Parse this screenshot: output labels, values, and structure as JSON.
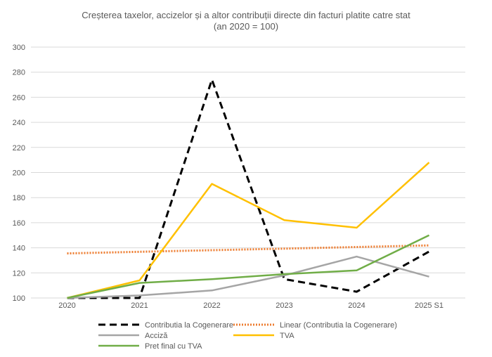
{
  "chart_data": {
    "type": "line",
    "title": "Creșterea taxelor, accizelor și a altor contribuții directe din facturi platite catre stat",
    "subtitle": "(an 2020 = 100)",
    "categories": [
      "2020",
      "2021",
      "2022",
      "2023",
      "2024",
      "2025 S1"
    ],
    "ylim": [
      100,
      300
    ],
    "yticks": [
      100,
      120,
      140,
      160,
      180,
      200,
      220,
      240,
      260,
      280,
      300
    ],
    "grid": true,
    "legend_position": "bottom",
    "series": [
      {
        "name": "Contributia la Cogenerare",
        "values": [
          100,
          100,
          274,
          115,
          105,
          137
        ],
        "color": "#000000",
        "style": "dashed"
      },
      {
        "name": "Linear (Contributia la Cogenerare)",
        "values": [
          135.5,
          136.8,
          138.1,
          139.3,
          140.6,
          141.9
        ],
        "color": "#ED7D31",
        "style": "dotted"
      },
      {
        "name": "Acciză",
        "values": [
          100,
          102,
          106,
          118,
          133,
          117
        ],
        "color": "#A5A5A5",
        "style": "solid"
      },
      {
        "name": "TVA",
        "values": [
          100,
          114,
          191,
          162,
          156,
          208
        ],
        "color": "#FFC000",
        "style": "solid"
      },
      {
        "name": "Pret final cu TVA",
        "values": [
          100,
          112,
          115,
          119,
          122,
          150
        ],
        "color": "#70AD47",
        "style": "solid"
      }
    ]
  }
}
